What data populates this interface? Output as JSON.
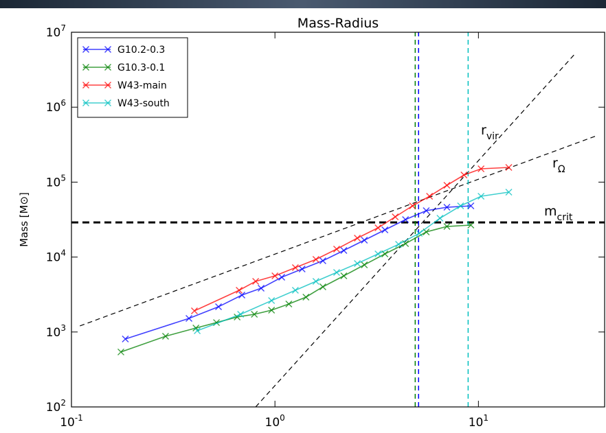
{
  "chart_data": {
    "type": "line",
    "title": "Mass-Radius",
    "y_label": "Mass [M⊙]",
    "log_x": true,
    "log_y": true,
    "xlim": [
      0.1,
      41.7
    ],
    "ylim": [
      100,
      10000000
    ],
    "xticks": [
      {
        "value": 0.1,
        "label": "10",
        "exp": "-1"
      },
      {
        "value": 1,
        "label": "10",
        "exp": "0"
      },
      {
        "value": 10,
        "label": "10",
        "exp": "1"
      }
    ],
    "yticks": [
      {
        "value": 100,
        "label": "10",
        "exp": "2"
      },
      {
        "value": 1000,
        "label": "10",
        "exp": "3"
      },
      {
        "value": 10000,
        "label": "10",
        "exp": "4"
      },
      {
        "value": 100000,
        "label": "10",
        "exp": "5"
      },
      {
        "value": 1000000,
        "label": "10",
        "exp": "6"
      },
      {
        "value": 10000000,
        "label": "10",
        "exp": "7"
      }
    ],
    "legend_position": "upper left",
    "series": [
      {
        "name": "G10.2-0.3",
        "color": "#0000ff",
        "x": [
          0.184,
          0.378,
          0.528,
          0.688,
          0.855,
          1.08,
          1.36,
          1.72,
          2.18,
          2.75,
          3.47,
          4.38,
          5.54,
          7.0,
          9.18
        ],
        "values": [
          807,
          1517,
          2171,
          3110,
          3838,
          5380,
          6930,
          8930,
          12250,
          16800,
          23060,
          31620,
          41590,
          46200,
          48200
        ]
      },
      {
        "name": "G10.3-0.1",
        "color": "#008000",
        "x": [
          0.175,
          0.29,
          0.409,
          0.516,
          0.652,
          0.792,
          0.962,
          1.17,
          1.42,
          1.72,
          2.18,
          2.75,
          3.47,
          4.38,
          5.54,
          7.0,
          9.18
        ],
        "values": [
          541,
          877,
          1130,
          1336,
          1585,
          1723,
          1955,
          2365,
          2920,
          4005,
          5610,
          7870,
          11020,
          15110,
          21630,
          25600,
          26720
        ]
      },
      {
        "name": "W43-main",
        "color": "#ff0000",
        "x": [
          0.402,
          0.667,
          0.804,
          1.0,
          1.26,
          1.59,
          2.01,
          2.54,
          3.21,
          3.9,
          4.74,
          5.75,
          7.0,
          8.49,
          10.3,
          14.1
        ],
        "values": [
          1914,
          3606,
          4745,
          5610,
          7230,
          9310,
          12770,
          17900,
          24550,
          34400,
          48200,
          64800,
          90700,
          124500,
          150500,
          157000
        ]
      },
      {
        "name": "W43-south",
        "color": "#00bfbf",
        "x": [
          0.415,
          0.678,
          0.962,
          1.26,
          1.59,
          2.01,
          2.54,
          3.21,
          4.05,
          5.12,
          6.47,
          8.17,
          10.3,
          14.1
        ],
        "values": [
          1038,
          1723,
          2624,
          3606,
          4745,
          6240,
          8200,
          11020,
          14790,
          20750,
          32960,
          48200,
          64800,
          73500
        ]
      }
    ],
    "ref_lines": [
      {
        "color": "#000000",
        "width": 1.2,
        "x": [
          0.804,
          29.5
        ],
        "y": [
          100,
          4990000
        ]
      },
      {
        "color": "#000000",
        "width": 1.2,
        "x": [
          0.11,
          38.7
        ],
        "y": [
          1205,
          423000
        ]
      },
      {
        "color": "#000000",
        "width": 3,
        "x": [
          0.1,
          41.7
        ],
        "y": [
          29000,
          29000
        ]
      },
      {
        "color": "#008000",
        "width": 1.5,
        "x": [
          4.89,
          4.89
        ],
        "y": [
          100,
          10000000
        ]
      },
      {
        "color": "#0000ff",
        "width": 1.5,
        "x": [
          5.08,
          5.08
        ],
        "y": [
          100,
          10000000
        ]
      },
      {
        "color": "#00bfbf",
        "width": 1.5,
        "x": [
          8.9,
          8.9
        ],
        "y": [
          100,
          10000000
        ]
      }
    ],
    "annotations": [
      {
        "text": "r",
        "sub": "vir"
      },
      {
        "text": "r",
        "sub": "Ω"
      },
      {
        "text": "m",
        "sub": "crit"
      }
    ]
  }
}
